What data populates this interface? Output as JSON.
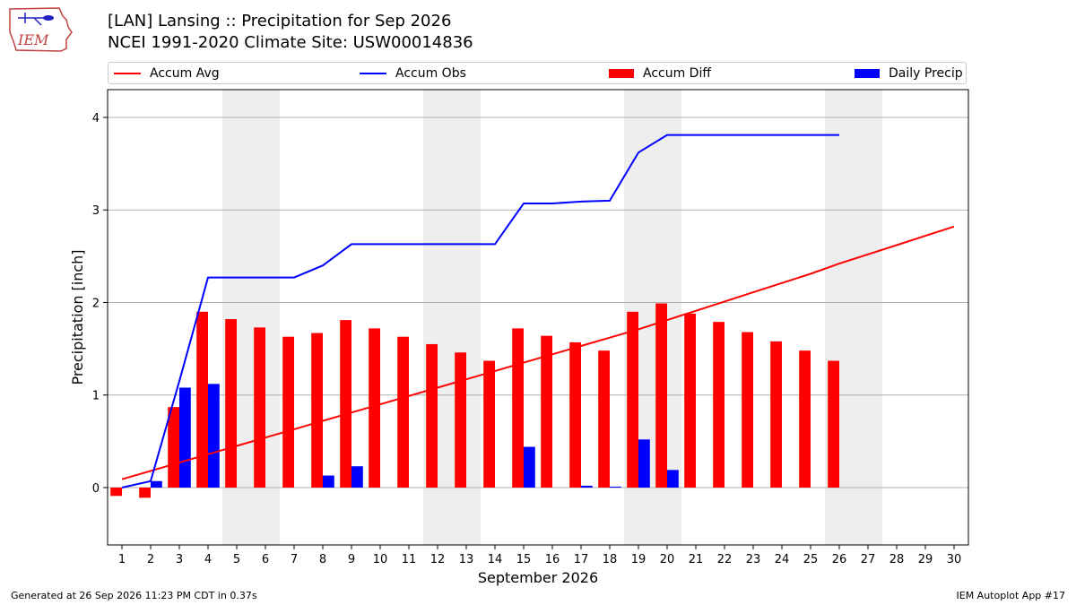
{
  "header": {
    "title_line1": "[LAN] Lansing :: Precipitation for Sep 2026",
    "title_line2": "NCEI 1991-2020 Climate Site: USW00014836",
    "logo_text": "IEM"
  },
  "footer": {
    "generated": "Generated at 26 Sep 2026 11:23 PM CDT in 0.37s",
    "app": "IEM Autoplot App #17"
  },
  "legend": [
    {
      "label": "Accum Avg",
      "kind": "line",
      "color": "#ff0000"
    },
    {
      "label": "Accum Obs",
      "kind": "line",
      "color": "#0000ff"
    },
    {
      "label": "Accum Diff",
      "kind": "bar",
      "color": "#ff0000"
    },
    {
      "label": "Daily Precip",
      "kind": "bar",
      "color": "#0000ff"
    }
  ],
  "chart_data": {
    "type": "bar",
    "xlabel": "September 2026",
    "ylabel": "Precipitation [inch]",
    "xlim": [
      0.5,
      30.5
    ],
    "ylim": [
      -0.62,
      4.3
    ],
    "yticks": [
      0,
      1,
      2,
      3,
      4
    ],
    "grid": "horizontal",
    "legend_position": "top",
    "weekend_days": [
      5,
      6,
      12,
      13,
      19,
      20,
      26,
      27
    ],
    "days": [
      1,
      2,
      3,
      4,
      5,
      6,
      7,
      8,
      9,
      10,
      11,
      12,
      13,
      14,
      15,
      16,
      17,
      18,
      19,
      20,
      21,
      22,
      23,
      24,
      25,
      26,
      27,
      28,
      29,
      30
    ],
    "series": [
      {
        "name": "Accum Avg",
        "type": "line",
        "color": "#ff0000",
        "values": [
          0.09,
          0.18,
          0.27,
          0.36,
          0.45,
          0.54,
          0.63,
          0.72,
          0.81,
          0.9,
          0.99,
          1.08,
          1.17,
          1.26,
          1.35,
          1.44,
          1.53,
          1.62,
          1.71,
          1.81,
          1.91,
          2.01,
          2.11,
          2.21,
          2.31,
          2.42,
          2.52,
          2.62,
          2.72,
          2.82
        ]
      },
      {
        "name": "Accum Obs",
        "type": "line",
        "color": "#0000ff",
        "values": [
          0.0,
          0.07,
          1.15,
          2.27,
          2.27,
          2.27,
          2.27,
          2.4,
          2.63,
          2.63,
          2.63,
          2.63,
          2.63,
          2.63,
          3.07,
          3.07,
          3.09,
          3.1,
          3.62,
          3.81,
          3.81,
          3.81,
          3.81,
          3.81,
          3.81,
          3.81
        ]
      },
      {
        "name": "Accum Diff",
        "type": "bar",
        "color": "#ff0000",
        "values": [
          -0.09,
          -0.11,
          0.87,
          1.9,
          1.82,
          1.73,
          1.63,
          1.67,
          1.81,
          1.72,
          1.63,
          1.55,
          1.46,
          1.37,
          1.72,
          1.64,
          1.57,
          1.48,
          1.9,
          1.99,
          1.88,
          1.79,
          1.68,
          1.58,
          1.48,
          1.37
        ]
      },
      {
        "name": "Daily Precip",
        "type": "bar",
        "color": "#0000ff",
        "values": [
          0.0,
          0.07,
          1.08,
          1.12,
          0,
          0,
          0,
          0.13,
          0.23,
          0,
          0,
          0,
          0,
          0,
          0.44,
          0,
          0.02,
          0.01,
          0.52,
          0.19,
          0,
          0,
          0,
          0,
          0,
          0
        ]
      }
    ]
  }
}
